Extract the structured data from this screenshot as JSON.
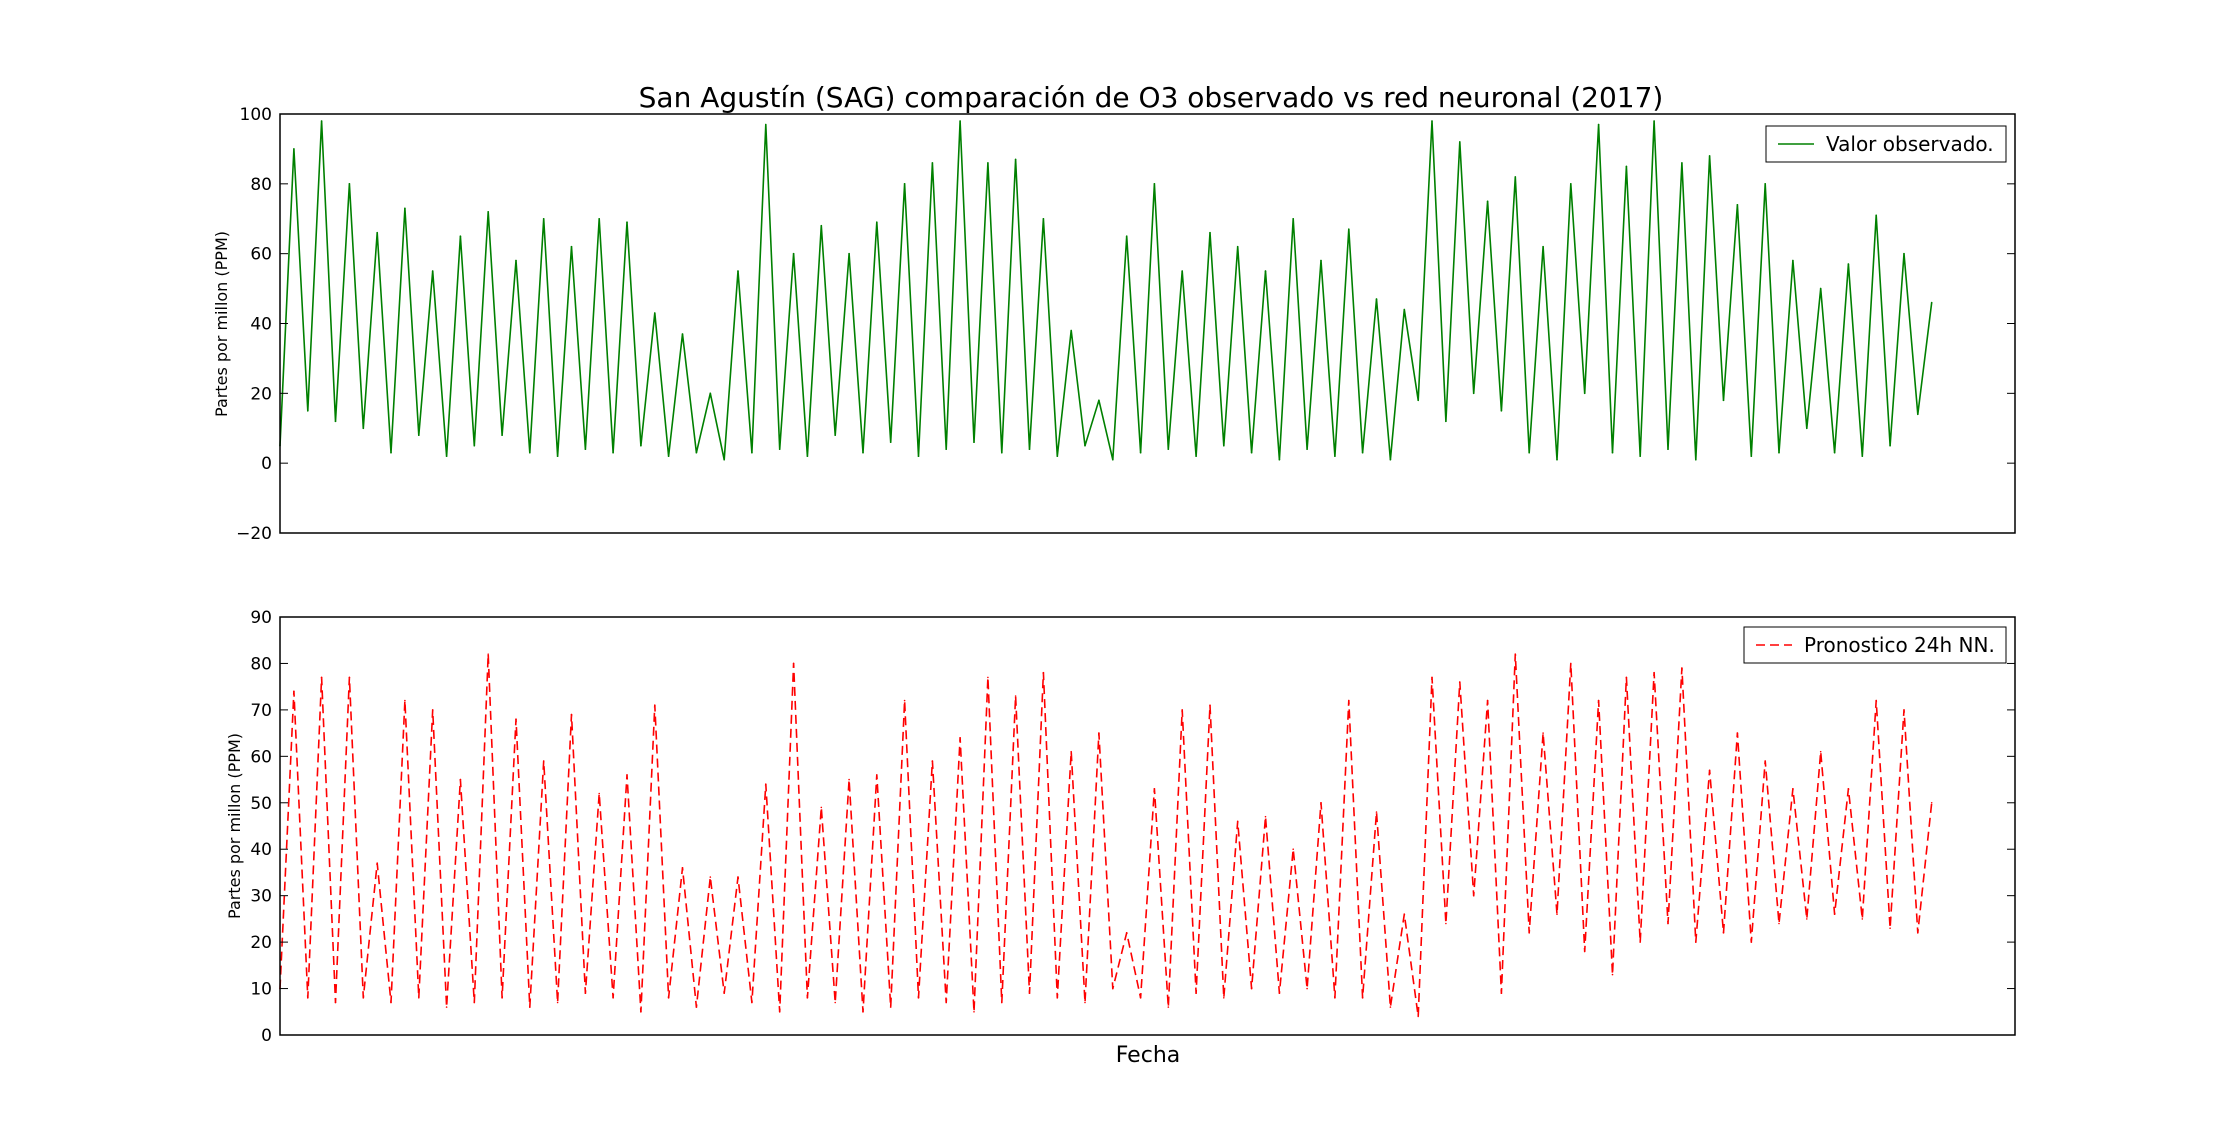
{
  "chart_data": [
    {
      "type": "line",
      "title": "San Agustín (SAG) comparación de O3 observado vs red neuronal (2017)",
      "xlabel": "",
      "ylabel": "Partes por millon (PPM)",
      "ylim": [
        -20,
        100
      ],
      "yticks": [
        -20,
        0,
        20,
        40,
        60,
        80,
        100
      ],
      "ytick_labels": [
        "−20",
        "0",
        "20",
        "40",
        "60",
        "80",
        "100"
      ],
      "xlim": [
        0,
        500
      ],
      "x_ticks_shown": false,
      "grid": false,
      "legend": {
        "position": "top-right"
      },
      "series": [
        {
          "name": "Valor observado.",
          "color": "#008000",
          "style": "solid",
          "x": [
            0,
            4,
            8,
            12,
            16,
            20,
            24,
            28,
            32,
            36,
            40,
            44,
            48,
            52,
            56,
            60,
            64,
            68,
            72,
            76,
            80,
            84,
            88,
            92,
            96,
            100,
            104,
            108,
            112,
            116,
            120,
            124,
            128,
            132,
            136,
            140,
            144,
            148,
            152,
            156,
            160,
            164,
            168,
            172,
            176,
            180,
            184,
            188,
            192,
            196,
            200,
            204,
            208,
            212,
            216,
            220,
            224,
            228,
            232,
            236,
            240,
            244,
            248,
            252,
            256,
            260,
            264,
            268,
            272,
            276,
            280,
            284,
            288,
            292,
            296,
            300,
            304,
            308,
            312,
            316,
            320,
            324,
            328,
            332,
            336,
            340,
            344,
            348,
            352,
            356,
            360,
            364,
            368,
            372,
            376,
            380,
            384,
            388,
            392,
            396,
            400,
            404,
            408,
            412,
            416,
            420,
            424,
            428,
            432,
            436,
            440,
            444,
            448,
            452,
            456,
            460,
            464,
            468,
            472,
            476
          ],
          "values": [
            5,
            90,
            15,
            98,
            12,
            80,
            10,
            66,
            3,
            73,
            8,
            55,
            2,
            65,
            5,
            72,
            8,
            58,
            3,
            70,
            2,
            62,
            4,
            70,
            3,
            69,
            5,
            43,
            2,
            37,
            3,
            20,
            1,
            55,
            3,
            97,
            4,
            60,
            2,
            68,
            8,
            60,
            3,
            69,
            6,
            80,
            2,
            86,
            4,
            98,
            6,
            86,
            3,
            87,
            4,
            70,
            2,
            38,
            5,
            18,
            1,
            65,
            3,
            80,
            4,
            55,
            2,
            66,
            5,
            62,
            3,
            55,
            1,
            70,
            4,
            58,
            2,
            67,
            3,
            47,
            1,
            44,
            18,
            98,
            12,
            92,
            20,
            75,
            15,
            82,
            3,
            62,
            1,
            80,
            20,
            97,
            3,
            85,
            2,
            98,
            4,
            86,
            1,
            88,
            18,
            74,
            2,
            80,
            3,
            58,
            10,
            50,
            3,
            57,
            2,
            71,
            5,
            60,
            14,
            46
          ]
        }
      ]
    },
    {
      "type": "line",
      "title": "",
      "xlabel": "Fecha",
      "ylabel": "Partes por millon (PPM)",
      "ylim": [
        0,
        90
      ],
      "yticks": [
        0,
        10,
        20,
        30,
        40,
        50,
        60,
        70,
        80,
        90
      ],
      "ytick_labels": [
        "0",
        "10",
        "20",
        "30",
        "40",
        "50",
        "60",
        "70",
        "80",
        "90"
      ],
      "xlim": [
        0,
        500
      ],
      "x_ticks_shown": false,
      "grid": false,
      "legend": {
        "position": "top-right"
      },
      "series": [
        {
          "name": "Pronostico 24h NN.",
          "color": "#ff0000",
          "style": "dashed",
          "x": [
            0,
            4,
            8,
            12,
            16,
            20,
            24,
            28,
            32,
            36,
            40,
            44,
            48,
            52,
            56,
            60,
            64,
            68,
            72,
            76,
            80,
            84,
            88,
            92,
            96,
            100,
            104,
            108,
            112,
            116,
            120,
            124,
            128,
            132,
            136,
            140,
            144,
            148,
            152,
            156,
            160,
            164,
            168,
            172,
            176,
            180,
            184,
            188,
            192,
            196,
            200,
            204,
            208,
            212,
            216,
            220,
            224,
            228,
            232,
            236,
            240,
            244,
            248,
            252,
            256,
            260,
            264,
            268,
            272,
            276,
            280,
            284,
            288,
            292,
            296,
            300,
            304,
            308,
            312,
            316,
            320,
            324,
            328,
            332,
            336,
            340,
            344,
            348,
            352,
            356,
            360,
            364,
            368,
            372,
            376,
            380,
            384,
            388,
            392,
            396,
            400,
            404,
            408,
            412,
            416,
            420,
            424,
            428,
            432,
            436,
            440,
            444,
            448,
            452,
            456,
            460,
            464,
            468,
            472,
            476
          ],
          "values": [
            10,
            74,
            8,
            77,
            7,
            77,
            8,
            37,
            7,
            72,
            8,
            70,
            6,
            55,
            7,
            82,
            8,
            68,
            6,
            59,
            7,
            69,
            9,
            52,
            8,
            56,
            5,
            71,
            8,
            36,
            6,
            34,
            9,
            34,
            7,
            54,
            5,
            80,
            8,
            49,
            7,
            55,
            5,
            56,
            6,
            72,
            8,
            59,
            7,
            64,
            5,
            77,
            7,
            73,
            9,
            78,
            8,
            61,
            7,
            65,
            10,
            22,
            8,
            53,
            6,
            70,
            9,
            71,
            8,
            46,
            10,
            47,
            9,
            40,
            10,
            50,
            8,
            72,
            8,
            48,
            6,
            26,
            4,
            77,
            24,
            76,
            30,
            72,
            9,
            82,
            22,
            65,
            26,
            80,
            18,
            72,
            13,
            77,
            20,
            78,
            24,
            79,
            20,
            57,
            22,
            65,
            20,
            59,
            24,
            53,
            25,
            61,
            26,
            53,
            25,
            72,
            23,
            70,
            22,
            50
          ]
        }
      ]
    }
  ]
}
